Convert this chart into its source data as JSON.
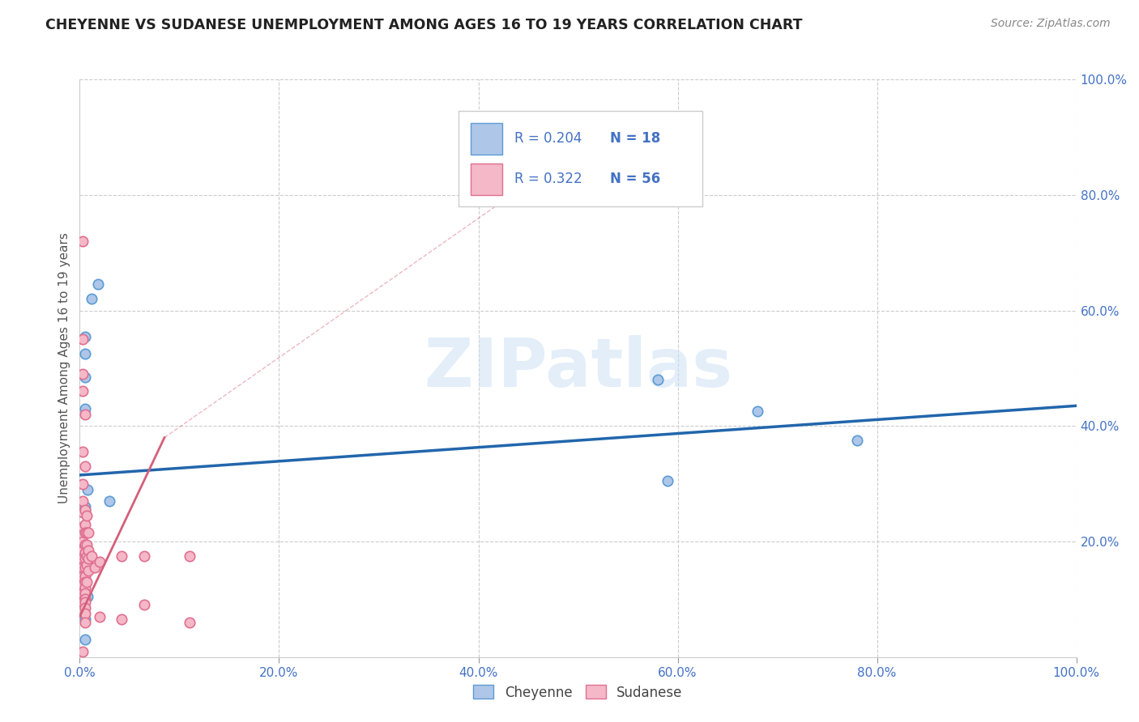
{
  "title": "CHEYENNE VS SUDANESE UNEMPLOYMENT AMONG AGES 16 TO 19 YEARS CORRELATION CHART",
  "source": "Source: ZipAtlas.com",
  "ylabel": "Unemployment Among Ages 16 to 19 years",
  "xlim": [
    0,
    1.0
  ],
  "ylim": [
    0,
    1.0
  ],
  "xticks": [
    0.0,
    0.2,
    0.4,
    0.6,
    0.8,
    1.0
  ],
  "yticks": [
    0.0,
    0.2,
    0.4,
    0.6,
    0.8,
    1.0
  ],
  "xtick_labels": [
    "0.0%",
    "20.0%",
    "40.0%",
    "60.0%",
    "80.0%",
    "100.0%"
  ],
  "ytick_labels_right": [
    "",
    "20.0%",
    "40.0%",
    "60.0%",
    "80.0%",
    "100.0%"
  ],
  "cheyenne_color": "#aec6e8",
  "cheyenne_edge_color": "#5b9bd5",
  "sudanese_color": "#f4b8c8",
  "sudanese_edge_color": "#e07090",
  "trend_cheyenne_color": "#2166ac",
  "trend_sudanese_color": "#d4607a",
  "legend_R_cheyenne": "R = 0.204",
  "legend_N_cheyenne": "N = 18",
  "legend_R_sudanese": "R = 0.322",
  "legend_N_sudanese": "N = 56",
  "watermark": "ZIPatlas",
  "cheyenne_x": [
    0.012,
    0.018,
    0.005,
    0.005,
    0.005,
    0.005,
    0.008,
    0.005,
    0.005,
    0.03,
    0.58,
    0.68,
    0.78,
    0.59,
    0.01,
    0.008,
    0.005,
    0.005
  ],
  "cheyenne_y": [
    0.62,
    0.645,
    0.555,
    0.525,
    0.485,
    0.43,
    0.29,
    0.26,
    0.255,
    0.27,
    0.48,
    0.425,
    0.375,
    0.305,
    0.155,
    0.105,
    0.065,
    0.03
  ],
  "sudanese_x": [
    0.003,
    0.003,
    0.003,
    0.003,
    0.003,
    0.003,
    0.003,
    0.003,
    0.003,
    0.003,
    0.003,
    0.003,
    0.003,
    0.003,
    0.003,
    0.003,
    0.003,
    0.003,
    0.005,
    0.005,
    0.005,
    0.005,
    0.005,
    0.005,
    0.005,
    0.005,
    0.005,
    0.005,
    0.005,
    0.005,
    0.005,
    0.005,
    0.005,
    0.005,
    0.005,
    0.005,
    0.007,
    0.007,
    0.007,
    0.007,
    0.007,
    0.007,
    0.009,
    0.009,
    0.009,
    0.009,
    0.012,
    0.015,
    0.02,
    0.02,
    0.042,
    0.042,
    0.065,
    0.065,
    0.11,
    0.11
  ],
  "sudanese_y": [
    0.72,
    0.55,
    0.49,
    0.46,
    0.355,
    0.3,
    0.27,
    0.25,
    0.225,
    0.2,
    0.185,
    0.17,
    0.155,
    0.14,
    0.125,
    0.11,
    0.095,
    0.01,
    0.42,
    0.33,
    0.255,
    0.23,
    0.215,
    0.195,
    0.18,
    0.17,
    0.155,
    0.14,
    0.13,
    0.12,
    0.11,
    0.1,
    0.095,
    0.085,
    0.075,
    0.06,
    0.245,
    0.215,
    0.195,
    0.175,
    0.16,
    0.13,
    0.215,
    0.185,
    0.17,
    0.15,
    0.175,
    0.155,
    0.165,
    0.07,
    0.175,
    0.065,
    0.175,
    0.09,
    0.175,
    0.06
  ],
  "marker_size": 80,
  "trend_cheyenne_x0": 0.0,
  "trend_cheyenne_x1": 1.0,
  "trend_cheyenne_y0": 0.315,
  "trend_cheyenne_y1": 0.435,
  "trend_sudanese_solid_x0": 0.0,
  "trend_sudanese_solid_x1": 0.085,
  "trend_sudanese_solid_y0": 0.07,
  "trend_sudanese_solid_y1": 0.38,
  "trend_sudanese_dash_x0": 0.085,
  "trend_sudanese_dash_x1": 0.5,
  "trend_sudanese_dash_y0": 0.38,
  "trend_sudanese_dash_y1": 0.88
}
